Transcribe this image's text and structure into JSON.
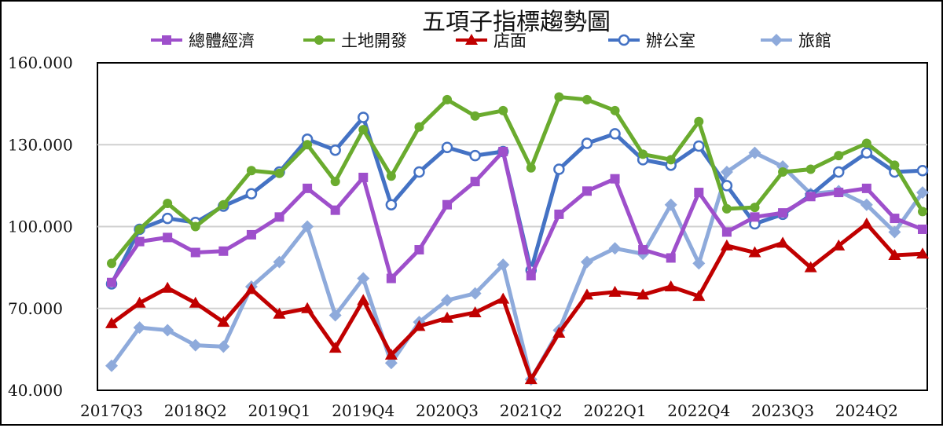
{
  "chart_data": {
    "type": "line",
    "title": "五項子指標趨勢圖",
    "xlabel": "",
    "ylabel": "",
    "ylim": [
      40,
      160
    ],
    "yticks": [
      "160.000",
      "130.000",
      "100.000",
      "70.000",
      "40.000"
    ],
    "ytick_values": [
      160,
      130,
      100,
      70,
      40
    ],
    "grid": "horizontal",
    "legend_placement": "top",
    "x": [
      "2017Q3",
      "2017Q4",
      "2018Q1",
      "2018Q2",
      "2018Q3",
      "2018Q4",
      "2019Q1",
      "2019Q2",
      "2019Q3",
      "2019Q4",
      "2020Q1",
      "2020Q2",
      "2020Q3",
      "2020Q4",
      "2021Q1",
      "2021Q2",
      "2021Q3",
      "2021Q4",
      "2022Q1",
      "2022Q2",
      "2022Q3",
      "2022Q4",
      "2023Q1",
      "2023Q2",
      "2023Q3",
      "2023Q4",
      "2024Q1",
      "2024Q2",
      "2024Q3",
      "2024Q4"
    ],
    "xtick_labels": [
      "2017Q3",
      "2018Q2",
      "2019Q1",
      "2019Q4",
      "2020Q3",
      "2021Q2",
      "2022Q1",
      "2022Q4",
      "2023Q3",
      "2024Q2"
    ],
    "series": [
      {
        "name": "旅館",
        "color": "#8EAADB",
        "marker": "diamond",
        "values": [
          49,
          63,
          62,
          56.5,
          56,
          78,
          87,
          100,
          67.5,
          81,
          50,
          65,
          73,
          75.5,
          86,
          44,
          62,
          87,
          92,
          90,
          108,
          86.5,
          120,
          127,
          122,
          112,
          113,
          108,
          98,
          112.5
        ]
      },
      {
        "name": "辦公室",
        "color": "#4472C4",
        "marker": "circle-open",
        "values": [
          79,
          99,
          103,
          101.5,
          107.5,
          112,
          120,
          132,
          128,
          140,
          108,
          120,
          129,
          126,
          127.5,
          84,
          121,
          130.5,
          134,
          124.5,
          122.5,
          129.5,
          115,
          101,
          104.5,
          111.5,
          120,
          127,
          120,
          120.5
        ]
      },
      {
        "name": "總體經濟",
        "color": "#9E4FCB",
        "marker": "square",
        "values": [
          79.5,
          94.5,
          96,
          90.5,
          91,
          97,
          103.5,
          114,
          106,
          118,
          81,
          91.5,
          108,
          116.5,
          127.5,
          82,
          104.5,
          113,
          117.5,
          91.5,
          88.5,
          112.5,
          98,
          103.5,
          105,
          111,
          112.5,
          114,
          103,
          99
        ]
      },
      {
        "name": "土地開發",
        "color": "#6AAB2E",
        "marker": "dot",
        "values": [
          86.5,
          99,
          108.5,
          100,
          108,
          120.5,
          119.5,
          130,
          116.5,
          135.5,
          118.5,
          136.5,
          146.5,
          140.5,
          142.5,
          121.5,
          147.5,
          146.5,
          142.5,
          126.5,
          124.5,
          138.5,
          106.5,
          107,
          120,
          121,
          126,
          130.5,
          122.5,
          105.5
        ]
      },
      {
        "name": "店面",
        "color": "#C00000",
        "marker": "triangle",
        "values": [
          64.5,
          72,
          77.5,
          72,
          65,
          77,
          68,
          70,
          55.5,
          73,
          53,
          63.5,
          66.5,
          68.5,
          73.5,
          44,
          61,
          75,
          76,
          75,
          78,
          74.5,
          93,
          90.5,
          94,
          85,
          93,
          101,
          89.5,
          90
        ]
      }
    ],
    "legend_order": [
      "總體經濟",
      "土地開發",
      "店面",
      "辦公室",
      "旅館"
    ]
  }
}
